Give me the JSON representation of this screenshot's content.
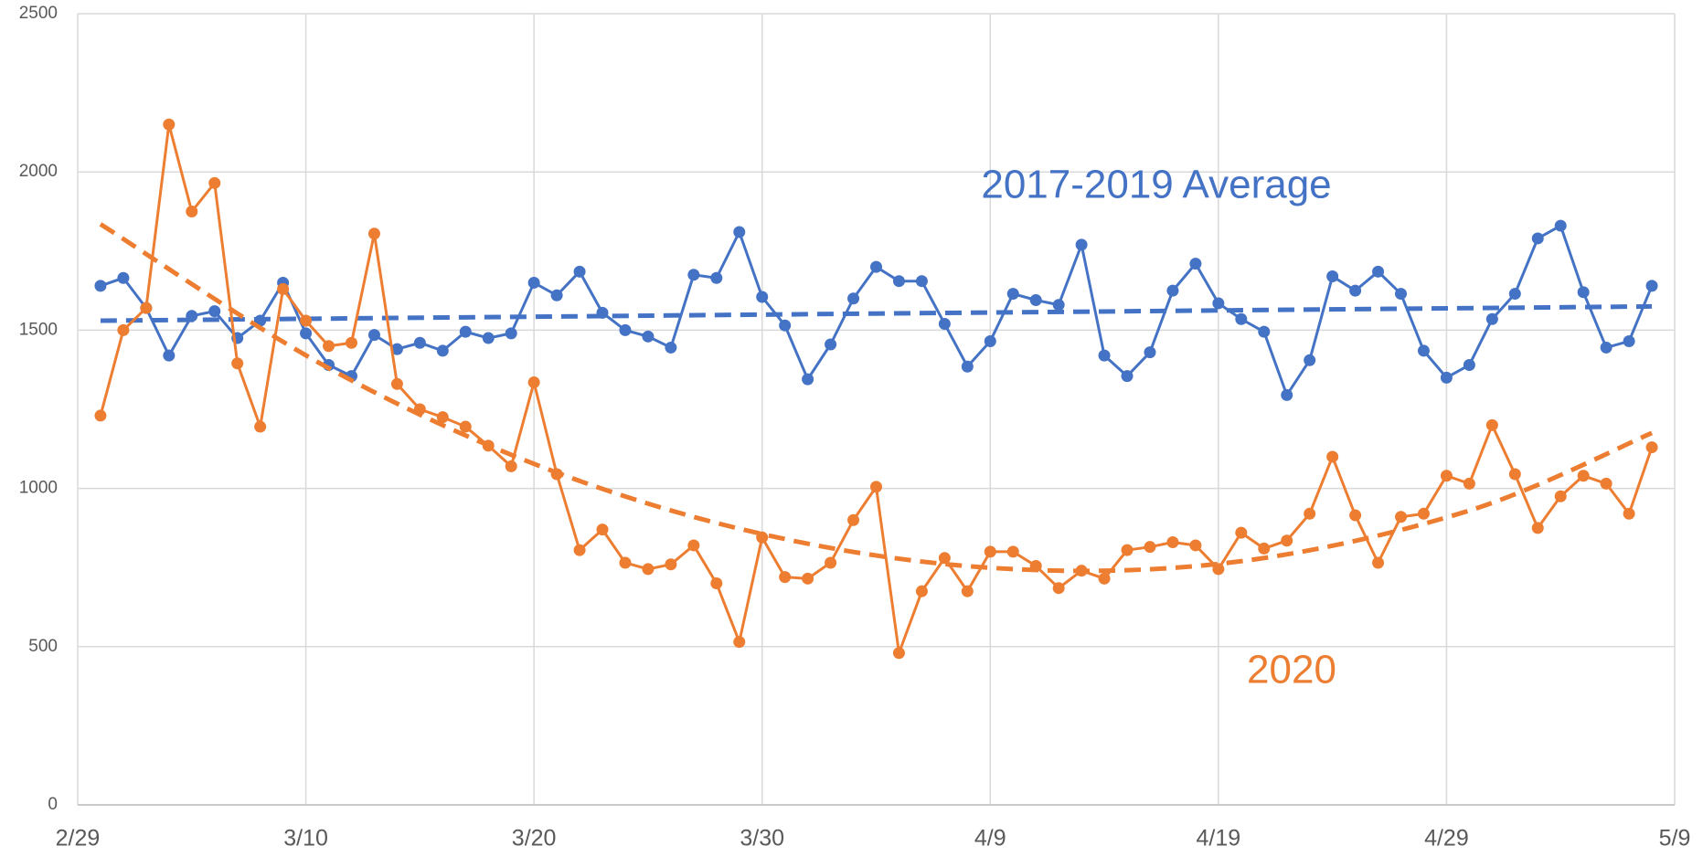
{
  "chart_data": {
    "type": "line",
    "annotations": [
      {
        "text": "2017-2019 Average",
        "color": "#4472c4"
      },
      {
        "text": "2020",
        "color": "#ed7d31"
      }
    ],
    "x": [
      1,
      2,
      3,
      4,
      5,
      6,
      7,
      8,
      9,
      10,
      11,
      12,
      13,
      14,
      15,
      16,
      17,
      18,
      19,
      20,
      21,
      22,
      23,
      24,
      25,
      26,
      27,
      28,
      29,
      30,
      31,
      32,
      33,
      34,
      35,
      36,
      37,
      38,
      39,
      40,
      41,
      42,
      43,
      44,
      45,
      46,
      47,
      48,
      49,
      50,
      51,
      52,
      53,
      54,
      55,
      56,
      57,
      58,
      59,
      60,
      61,
      62,
      63,
      64,
      65,
      66,
      67,
      68,
      69
    ],
    "xlim": [
      0,
      70
    ],
    "xticks": [
      {
        "value": 0,
        "label": "2/29"
      },
      {
        "value": 10,
        "label": "3/10"
      },
      {
        "value": 20,
        "label": "3/20"
      },
      {
        "value": 30,
        "label": "3/30"
      },
      {
        "value": 40,
        "label": "4/9"
      },
      {
        "value": 50,
        "label": "4/19"
      },
      {
        "value": 60,
        "label": "4/29"
      },
      {
        "value": 70,
        "label": "5/9"
      }
    ],
    "ylim": [
      0,
      2500
    ],
    "yticks": [
      0,
      500,
      1000,
      1500,
      2000,
      2500
    ],
    "grid": true,
    "series": [
      {
        "name": "2017-2019 Average",
        "color": "#4472c4",
        "values": [
          1640,
          1665,
          1570,
          1420,
          1545,
          1560,
          1475,
          1530,
          1650,
          1490,
          1390,
          1355,
          1485,
          1440,
          1460,
          1435,
          1495,
          1475,
          1490,
          1650,
          1610,
          1685,
          1555,
          1500,
          1480,
          1445,
          1675,
          1665,
          1810,
          1605,
          1515,
          1345,
          1455,
          1600,
          1700,
          1655,
          1655,
          1520,
          1385,
          1465,
          1615,
          1595,
          1580,
          1770,
          1420,
          1355,
          1430,
          1625,
          1710,
          1585,
          1535,
          1495,
          1295,
          1405,
          1670,
          1625,
          1685,
          1615,
          1435,
          1350,
          1390,
          1535,
          1615,
          1790,
          1830,
          1620,
          1445,
          1465,
          1640
        ],
        "trend": {
          "x": [
            1,
            69
          ],
          "values": [
            1530,
            1575
          ]
        }
      },
      {
        "name": "2020",
        "color": "#ed7d31",
        "values": [
          1230,
          1500,
          1570,
          2150,
          1875,
          1965,
          1395,
          1195,
          1630,
          1530,
          1450,
          1460,
          1805,
          1330,
          1250,
          1225,
          1195,
          1135,
          1070,
          1335,
          1045,
          805,
          870,
          765,
          745,
          760,
          820,
          700,
          515,
          845,
          720,
          715,
          765,
          900,
          1005,
          480,
          675,
          780,
          675,
          800,
          800,
          755,
          685,
          740,
          715,
          805,
          815,
          830,
          820,
          745,
          860,
          810,
          835,
          920,
          1100,
          915,
          765,
          910,
          920,
          1040,
          1015,
          1200,
          1045,
          875,
          975,
          1040,
          1015,
          920,
          1130
        ],
        "trend": {
          "x": [
            1,
            11,
            21,
            31,
            41,
            51,
            61,
            69
          ],
          "values": [
            1835,
            1380,
            1050,
            840,
            745,
            770,
            930,
            1175
          ]
        }
      }
    ]
  }
}
